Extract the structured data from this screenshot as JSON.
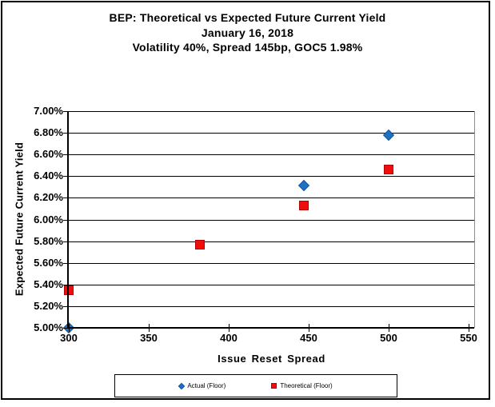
{
  "page": {
    "background_color": "#FFFFFF",
    "outer_border_color": "#000000",
    "plot_frame_color": "#8C8C8C",
    "gridline_color": "#000000"
  },
  "chart_data": {
    "type": "scatter",
    "title": "BEP: Theoretical vs Expected Future Current Yield",
    "title_lines": [
      "BEP: Theoretical vs Expected Future Current Yield",
      "January 16, 2018",
      "Volatility 40%, Spread 145bp, GOC5 1.98%"
    ],
    "xlabel": "Issue Reset Spread",
    "ylabel": "Expected Future Current Yield",
    "xlim": [
      300,
      550
    ],
    "ylim": [
      5.0,
      7.0
    ],
    "x_ticks": [
      300,
      350,
      400,
      450,
      500,
      550
    ],
    "y_ticks": [
      5.0,
      5.2,
      5.4,
      5.6,
      5.8,
      6.0,
      6.2,
      6.4,
      6.6,
      6.8,
      7.0
    ],
    "y_tick_labels": [
      "5.00%",
      "5.20%",
      "5.40%",
      "5.60%",
      "5.80%",
      "6.00%",
      "6.20%",
      "6.40%",
      "6.60%",
      "6.80%",
      "7.00%"
    ],
    "grid": "horizontal",
    "legend_position": "bottom-center",
    "series": [
      {
        "name": "Actual (Floor)",
        "marker": "diamond",
        "color": "#1F70C4",
        "border_color": "#12579E",
        "points": [
          [
            300,
            5.0
          ],
          [
            447,
            6.31
          ],
          [
            500,
            6.78
          ]
        ]
      },
      {
        "name": "Theoretical (Floor)",
        "marker": "square",
        "color": "#F20D0D",
        "border_color": "#B30000",
        "points": [
          [
            300,
            5.35
          ],
          [
            382,
            5.77
          ],
          [
            447,
            6.13
          ],
          [
            500,
            6.46
          ]
        ]
      }
    ]
  }
}
